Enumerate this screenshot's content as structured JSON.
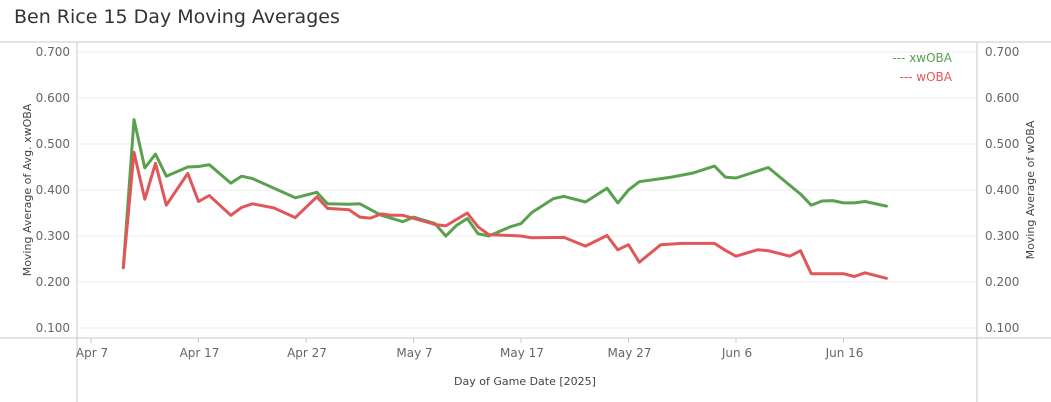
{
  "title": "Ben Rice 15 Day Moving Averages",
  "colors": {
    "xwoba": "#59a14f",
    "woba": "#e15759",
    "grid": "#ececec",
    "axis": "#c8c8c8"
  },
  "chart_data": {
    "type": "line",
    "title": "Ben Rice 15 Day Moving Averages",
    "xlabel": "Day of Game Date [2025]",
    "ylabel_left": "Moving Average of Avg. xwOBA",
    "ylabel_right": "Moving Average of wOBA",
    "ylim": [
      0.08,
      0.7
    ],
    "y_ticks": [
      "0.100",
      "0.200",
      "0.300",
      "0.400",
      "0.500",
      "0.600",
      "0.700"
    ],
    "x_ticks": [
      "Apr 7",
      "Apr 17",
      "Apr 27",
      "May 7",
      "May 17",
      "May 27",
      "Jun 6",
      "Jun 16"
    ],
    "x_range": [
      "2025-04-06",
      "2025-06-23"
    ],
    "grid": true,
    "legend_position": "top-right",
    "series": [
      {
        "name": "xwOBA",
        "legend_label": "--- xwOBA",
        "color": "#59a14f",
        "points": [
          [
            "2025-04-10",
            0.231
          ],
          [
            "2025-04-11",
            0.553
          ],
          [
            "2025-04-12",
            0.448
          ],
          [
            "2025-04-13",
            0.478
          ],
          [
            "2025-04-14",
            0.43
          ],
          [
            "2025-04-16",
            0.45
          ],
          [
            "2025-04-17",
            0.451
          ],
          [
            "2025-04-18",
            0.455
          ],
          [
            "2025-04-20",
            0.415
          ],
          [
            "2025-04-21",
            0.43
          ],
          [
            "2025-04-22",
            0.425
          ],
          [
            "2025-04-26",
            0.383
          ],
          [
            "2025-04-28",
            0.395
          ],
          [
            "2025-04-29",
            0.37
          ],
          [
            "2025-05-01",
            0.369
          ],
          [
            "2025-05-02",
            0.37
          ],
          [
            "2025-05-04",
            0.345
          ],
          [
            "2025-05-06",
            0.331
          ],
          [
            "2025-05-07",
            0.341
          ],
          [
            "2025-05-09",
            0.327
          ],
          [
            "2025-05-10",
            0.3
          ],
          [
            "2025-05-11",
            0.323
          ],
          [
            "2025-05-12",
            0.338
          ],
          [
            "2025-05-13",
            0.305
          ],
          [
            "2025-05-14",
            0.3
          ],
          [
            "2025-05-16",
            0.32
          ],
          [
            "2025-05-17",
            0.327
          ],
          [
            "2025-05-18",
            0.351
          ],
          [
            "2025-05-20",
            0.381
          ],
          [
            "2025-05-21",
            0.386
          ],
          [
            "2025-05-23",
            0.374
          ],
          [
            "2025-05-25",
            0.404
          ],
          [
            "2025-05-26",
            0.372
          ],
          [
            "2025-05-27",
            0.4
          ],
          [
            "2025-05-28",
            0.418
          ],
          [
            "2025-05-31",
            0.428
          ],
          [
            "2025-06-02",
            0.437
          ],
          [
            "2025-06-04",
            0.452
          ],
          [
            "2025-06-05",
            0.428
          ],
          [
            "2025-06-06",
            0.426
          ],
          [
            "2025-06-08",
            0.441
          ],
          [
            "2025-06-09",
            0.449
          ],
          [
            "2025-06-12",
            0.391
          ],
          [
            "2025-06-13",
            0.367
          ],
          [
            "2025-06-14",
            0.376
          ],
          [
            "2025-06-15",
            0.377
          ],
          [
            "2025-06-16",
            0.372
          ],
          [
            "2025-06-17",
            0.372
          ],
          [
            "2025-06-18",
            0.375
          ],
          [
            "2025-06-20",
            0.365
          ]
        ]
      },
      {
        "name": "wOBA",
        "legend_label": "--- wOBA",
        "color": "#e15759",
        "points": [
          [
            "2025-04-10",
            0.231
          ],
          [
            "2025-04-11",
            0.482
          ],
          [
            "2025-04-12",
            0.38
          ],
          [
            "2025-04-13",
            0.458
          ],
          [
            "2025-04-14",
            0.367
          ],
          [
            "2025-04-16",
            0.436
          ],
          [
            "2025-04-17",
            0.375
          ],
          [
            "2025-04-18",
            0.388
          ],
          [
            "2025-04-20",
            0.345
          ],
          [
            "2025-04-21",
            0.362
          ],
          [
            "2025-04-22",
            0.37
          ],
          [
            "2025-04-24",
            0.361
          ],
          [
            "2025-04-26",
            0.34
          ],
          [
            "2025-04-28",
            0.385
          ],
          [
            "2025-04-29",
            0.36
          ],
          [
            "2025-05-01",
            0.357
          ],
          [
            "2025-05-02",
            0.341
          ],
          [
            "2025-05-03",
            0.339
          ],
          [
            "2025-05-04",
            0.348
          ],
          [
            "2025-05-05",
            0.345
          ],
          [
            "2025-05-06",
            0.345
          ],
          [
            "2025-05-08",
            0.332
          ],
          [
            "2025-05-09",
            0.325
          ],
          [
            "2025-05-10",
            0.322
          ],
          [
            "2025-05-12",
            0.35
          ],
          [
            "2025-05-13",
            0.32
          ],
          [
            "2025-05-14",
            0.303
          ],
          [
            "2025-05-17",
            0.3
          ],
          [
            "2025-05-18",
            0.296
          ],
          [
            "2025-05-21",
            0.297
          ],
          [
            "2025-05-23",
            0.278
          ],
          [
            "2025-05-25",
            0.301
          ],
          [
            "2025-05-26",
            0.27
          ],
          [
            "2025-05-27",
            0.281
          ],
          [
            "2025-05-28",
            0.243
          ],
          [
            "2025-05-30",
            0.281
          ],
          [
            "2025-06-01",
            0.284
          ],
          [
            "2025-06-04",
            0.284
          ],
          [
            "2025-06-05",
            0.269
          ],
          [
            "2025-06-06",
            0.256
          ],
          [
            "2025-06-08",
            0.27
          ],
          [
            "2025-06-09",
            0.268
          ],
          [
            "2025-06-11",
            0.256
          ],
          [
            "2025-06-12",
            0.268
          ],
          [
            "2025-06-13",
            0.218
          ],
          [
            "2025-06-16",
            0.218
          ],
          [
            "2025-06-17",
            0.212
          ],
          [
            "2025-06-18",
            0.22
          ],
          [
            "2025-06-20",
            0.208
          ]
        ]
      }
    ]
  }
}
